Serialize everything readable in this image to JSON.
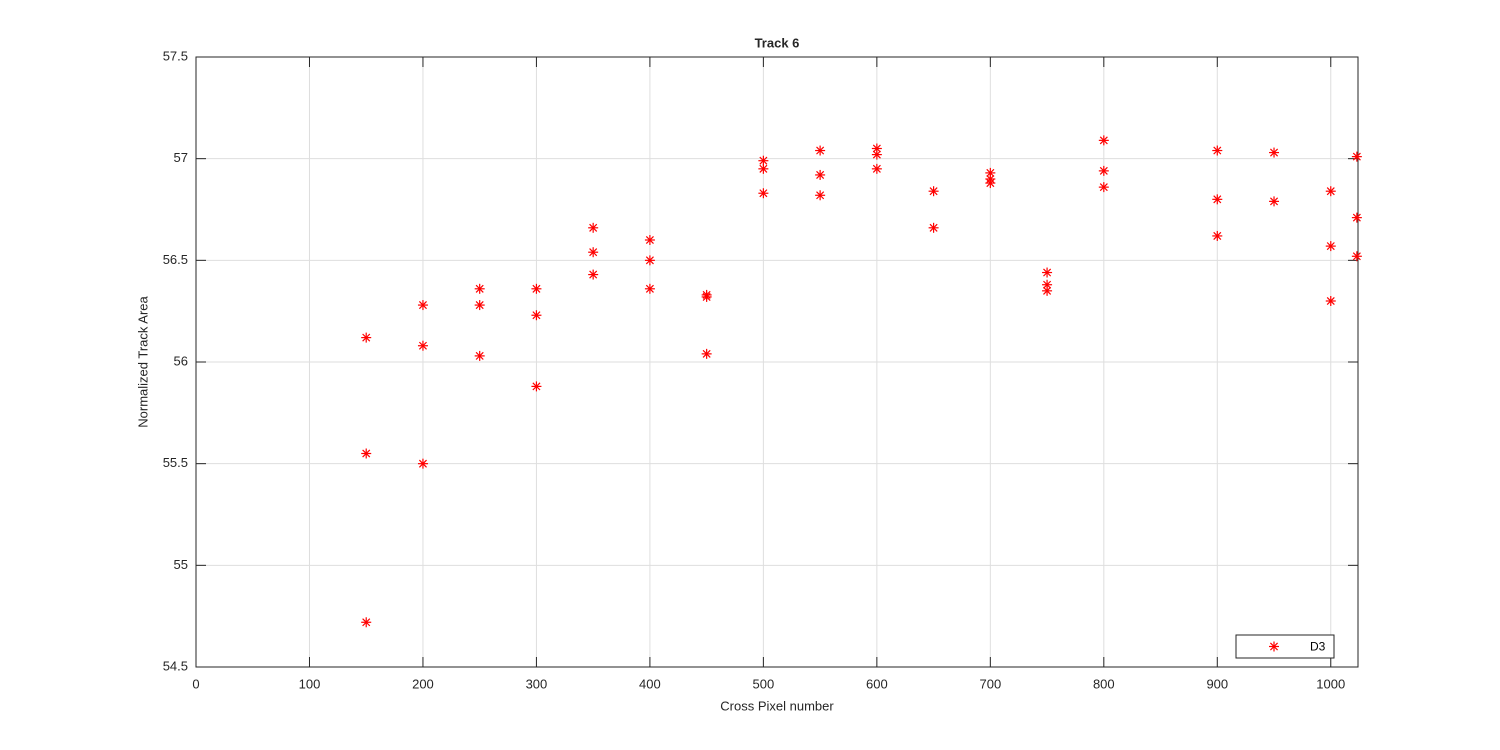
{
  "chart_data": {
    "type": "scatter",
    "title": "Track 6",
    "x_label": "Cross Pixel number",
    "y_label": "Normalized Track Area",
    "x": [
      150,
      150,
      150,
      200,
      200,
      200,
      250,
      250,
      250,
      300,
      300,
      300,
      350,
      350,
      350,
      400,
      400,
      400,
      450,
      450,
      450,
      500,
      500,
      500,
      550,
      550,
      550,
      600,
      600,
      600,
      650,
      650,
      700,
      700,
      700,
      750,
      750,
      750,
      800,
      800,
      800,
      900,
      900,
      900,
      950,
      950,
      1000,
      1000,
      1000,
      1023,
      1023,
      1023
    ],
    "series": [
      {
        "name": "D3",
        "color": "#ff0000",
        "marker": "*",
        "values": [
          56.12,
          55.55,
          54.72,
          56.28,
          56.08,
          55.5,
          56.36,
          56.28,
          56.03,
          56.36,
          56.23,
          55.88,
          56.66,
          56.54,
          56.43,
          56.6,
          56.5,
          56.36,
          56.33,
          56.32,
          56.04,
          56.99,
          56.95,
          56.83,
          57.04,
          56.92,
          56.82,
          57.05,
          57.02,
          56.95,
          56.84,
          56.66,
          56.93,
          56.9,
          56.88,
          56.44,
          56.38,
          56.35,
          57.09,
          56.94,
          56.86,
          57.04,
          56.8,
          56.62,
          57.03,
          56.79,
          56.84,
          56.57,
          56.3,
          57.01,
          56.71,
          56.52
        ]
      }
    ],
    "xlim": [
      0,
      1024
    ],
    "ylim": [
      54.5,
      57.5
    ],
    "xticks": [
      0,
      100,
      200,
      300,
      400,
      500,
      600,
      700,
      800,
      900,
      1000
    ],
    "yticks": [
      54.5,
      55,
      55.5,
      56,
      56.5,
      57,
      57.5
    ],
    "grid": true,
    "legend": "lower right"
  }
}
